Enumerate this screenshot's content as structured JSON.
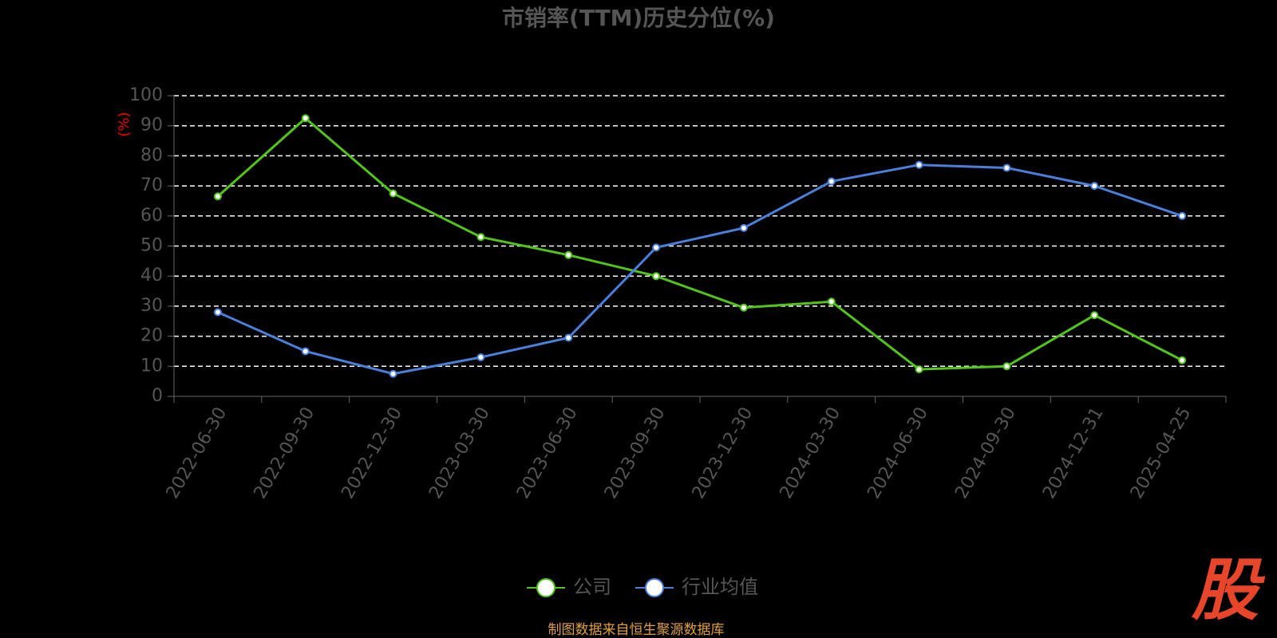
{
  "chart_data": {
    "type": "line",
    "title": "市销率(TTM)历史分位(%)",
    "y_label": "(%)",
    "categories": [
      "2022-06-30",
      "2022-09-30",
      "2022-12-30",
      "2023-03-30",
      "2023-06-30",
      "2023-09-30",
      "2023-12-30",
      "2024-03-30",
      "2024-06-30",
      "2024-09-30",
      "2024-12-31",
      "2025-04-25"
    ],
    "series": [
      {
        "name": "公司",
        "color": "#52c41a",
        "values": [
          66.5,
          92.5,
          67.5,
          53,
          47,
          40,
          29.5,
          31.5,
          9,
          10,
          27,
          12
        ]
      },
      {
        "name": "行业均值",
        "color": "#4a7fdc",
        "values": [
          28,
          15,
          7.5,
          13,
          19.5,
          49.5,
          56,
          71.5,
          77,
          76,
          70,
          60
        ]
      }
    ],
    "ylim": [
      0,
      100
    ],
    "yticks": [
      0,
      10,
      20,
      30,
      40,
      50,
      60,
      70,
      80,
      90,
      100
    ],
    "grid": true,
    "source": "制图数据来自恒生聚源数据库",
    "logo": "股"
  }
}
